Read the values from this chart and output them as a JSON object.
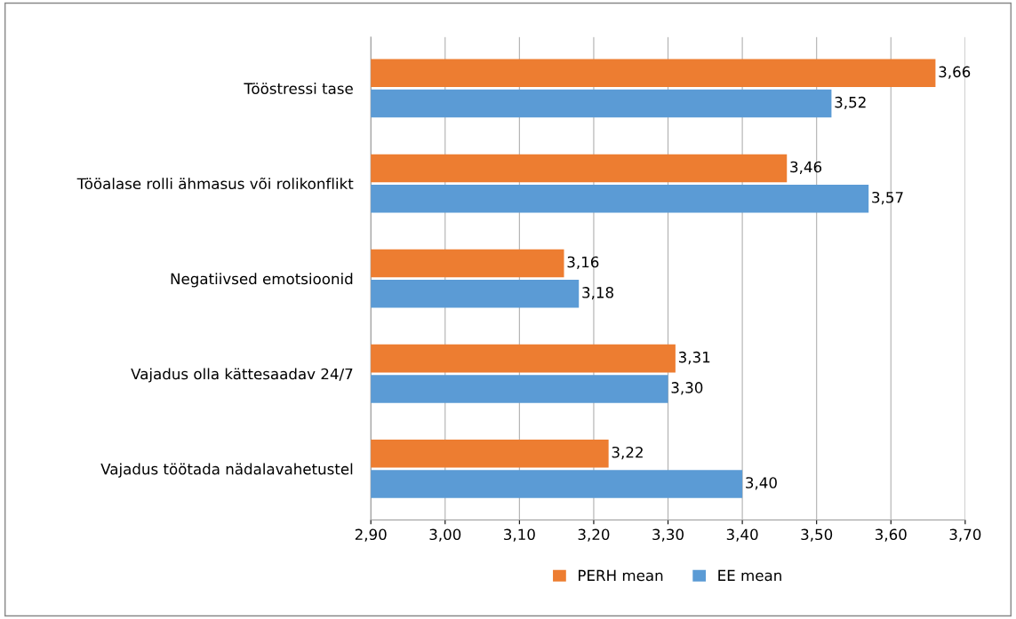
{
  "chart_data": {
    "type": "bar",
    "orientation": "horizontal",
    "categories": [
      "Tööstressi tase",
      "Tööalase rolli ähmasus või rolikonflikt",
      "Negatiivsed emotsioonid",
      "Vajadus olla kättesaadav 24/7",
      "Vajadus töötada nädalavahetustel"
    ],
    "series": [
      {
        "name": "PERH mean",
        "color": "#ed7d31",
        "values": [
          3.66,
          3.46,
          3.16,
          3.31,
          3.22
        ],
        "value_labels": [
          "3,66",
          "3,46",
          "3,16",
          "3,31",
          "3,22"
        ]
      },
      {
        "name": "EE mean",
        "color": "#5b9bd5",
        "values": [
          3.52,
          3.57,
          3.18,
          3.3,
          3.4
        ],
        "value_labels": [
          "3,52",
          "3,57",
          "3,18",
          "3,30",
          "3,40"
        ]
      }
    ],
    "xlim": [
      2.9,
      3.7
    ],
    "xticks": [
      {
        "value": 2.9,
        "label": "2,90"
      },
      {
        "value": 3.0,
        "label": "3,00"
      },
      {
        "value": 3.1,
        "label": "3,10"
      },
      {
        "value": 3.2,
        "label": "3,20"
      },
      {
        "value": 3.3,
        "label": "3,30"
      },
      {
        "value": 3.4,
        "label": "3,40"
      },
      {
        "value": 3.5,
        "label": "3,50"
      },
      {
        "value": 3.6,
        "label": "3,60"
      },
      {
        "value": 3.7,
        "label": "3,70"
      }
    ],
    "grid": "x",
    "legend": "bottom"
  }
}
